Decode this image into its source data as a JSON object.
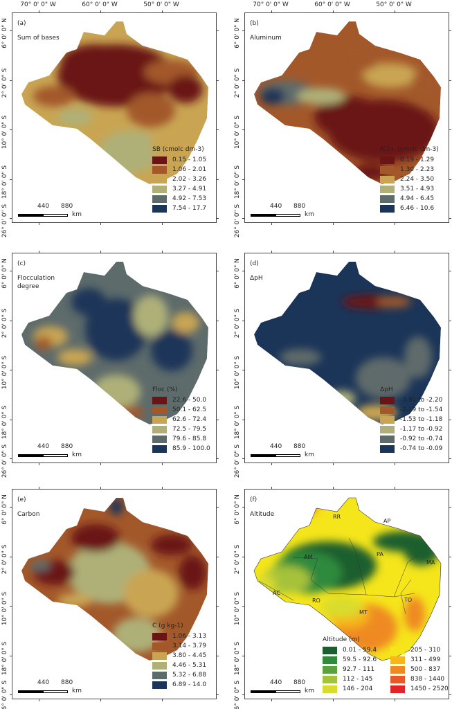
{
  "axes": {
    "lon_labels": [
      "70° 0' 0\" W",
      "60° 0' 0\" W",
      "50° 0' 0\" W"
    ],
    "lat_labels": [
      "6° 0' 0\" N",
      "2° 0' 0\" S",
      "10° 0' 0\" S",
      "18° 0' 0\" S",
      "26° 0' 0\" S"
    ]
  },
  "scale_bar": {
    "mid": "440",
    "end": "880",
    "unit": "km"
  },
  "panels": [
    {
      "id": "a",
      "label": "(a)",
      "title": "Sum of bases",
      "legend_title": "SB (cmolc dm-3)",
      "legend": [
        "0.15 - 1.05",
        "1.06 - 2.01",
        "2.02 - 3.26",
        "3.27 - 4.91",
        "4.92 - 7.53",
        "7.54 - 17.7"
      ]
    },
    {
      "id": "b",
      "label": "(b)",
      "title": "Aluminum",
      "legend_title": "Al3+ (cmolc dm-3)",
      "legend": [
        "0.19 - 1.29",
        "1.30 - 2.23",
        "2.24 - 3.50",
        "3.51 - 4.93",
        "4.94 - 6.45",
        "6.46 - 10.6"
      ]
    },
    {
      "id": "c",
      "label": "(c)",
      "title": "Flocculation degree",
      "legend_title": "Floc (%)",
      "legend": [
        "22.6 - 50.0",
        "50.1 - 62.5",
        "62.6 - 72.4",
        "72.5 - 79.5",
        "79.6 - 85.8",
        "85.9 - 100.0"
      ]
    },
    {
      "id": "d",
      "label": "(d)",
      "title": "ΔpH",
      "legend_title": "ΔpH",
      "legend": [
        "-3.91 to -2.20",
        "-2.19 to -1.54",
        "-1.53 to -1.18",
        "-1.17 to -0.92",
        "-0.92 to -0.74",
        "-0.74 to -0.09"
      ]
    },
    {
      "id": "e",
      "label": "(e)",
      "title": "Carbon",
      "legend_title": "C (g kg-1)",
      "legend": [
        "1.06 - 3.13",
        "3.14 - 3.79",
        "3.80 - 4.45",
        "4.46 - 5.31",
        "5.32 - 6.88",
        "6.89 - 14.0"
      ]
    },
    {
      "id": "f",
      "label": "(f)",
      "title": "Altitude",
      "legend_title": "Altitude (m)",
      "legend": [
        "0.01 - 59.4",
        "59.5 - 92.6",
        "92.7 - 111",
        "112 - 145",
        "146 - 204",
        "205 - 310",
        "311 - 499",
        "500 - 837",
        "838 - 1440",
        "1450 - 2520"
      ],
      "states": [
        "RR",
        "AP",
        "AM",
        "PA",
        "MA",
        "AC",
        "RO",
        "TO",
        "MT"
      ]
    }
  ],
  "palettes": {
    "soil": [
      "#6b1416",
      "#a3582a",
      "#c9a553",
      "#aeb078",
      "#5e6b6b",
      "#1b3558"
    ],
    "altitude": [
      "#1d5e2e",
      "#2f8a3c",
      "#5aa33c",
      "#a6c23a",
      "#d9dc2e",
      "#f5e51b",
      "#f6b71d",
      "#ef8a22",
      "#e8592a",
      "#e0252a"
    ]
  }
}
